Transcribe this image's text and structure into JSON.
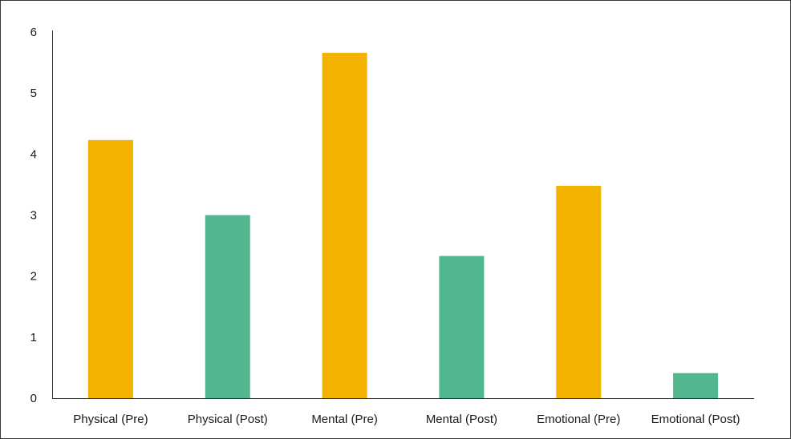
{
  "chart_data": {
    "type": "bar",
    "categories": [
      "Physical (Pre)",
      "Physical (Post)",
      "Mental (Pre)",
      "Mental (Post)",
      "Emotional (Pre)",
      "Emotional (Post)"
    ],
    "values": [
      4.23,
      3.0,
      5.66,
      2.33,
      3.48,
      0.41
    ],
    "bar_colors": [
      "#f2b200",
      "#52b78e",
      "#f2b200",
      "#52b78e",
      "#f2b200",
      "#52b78e"
    ],
    "yticks": [
      "0",
      "1",
      "2",
      "3",
      "4",
      "5",
      "6"
    ],
    "ylim": [
      0,
      6
    ],
    "grid": false,
    "title": "",
    "xlabel": "",
    "ylabel": ""
  }
}
